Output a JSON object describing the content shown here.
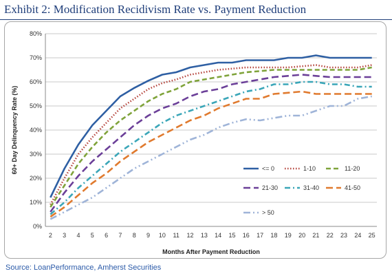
{
  "header": {
    "title": "Exhibit 2:  Modification Recidivism Rate vs. Payment Reduction"
  },
  "footer": {
    "source": "Source:  LoanPerformance, Amherst Securities"
  },
  "chart_data": {
    "type": "line",
    "title": "",
    "xlabel": "Months After Payment Reduction",
    "ylabel": "60+ Day Delinquency Rate (%)",
    "x": [
      2,
      3,
      4,
      5,
      6,
      7,
      8,
      9,
      10,
      11,
      12,
      13,
      14,
      15,
      16,
      17,
      18,
      19,
      20,
      21,
      22,
      23,
      24,
      25
    ],
    "ylim": [
      0,
      80
    ],
    "yticks": [
      0,
      10,
      20,
      30,
      40,
      50,
      60,
      70,
      80
    ],
    "y_tick_format": "percent",
    "grid": true,
    "legend_position": "bottom-right",
    "series": [
      {
        "name": "<= 0",
        "color": "#2e5fa3",
        "style": "solid",
        "values": [
          12,
          24,
          34,
          42,
          48,
          54,
          57.5,
          60.5,
          63,
          64,
          66,
          67,
          68,
          68,
          69,
          69,
          69,
          70,
          70,
          71,
          70,
          70,
          70,
          70
        ]
      },
      {
        "name": "1-10",
        "color": "#b5443c",
        "style": "dotted",
        "values": [
          9,
          20,
          30,
          37,
          43,
          49,
          53,
          57,
          59.5,
          61,
          63,
          64,
          65,
          65.5,
          66,
          66,
          66,
          66,
          66.5,
          67,
          66,
          66,
          66,
          67
        ]
      },
      {
        "name": "11-20",
        "color": "#7fa33a",
        "style": "dashed",
        "values": [
          8,
          17,
          26,
          33,
          39,
          44,
          48,
          52,
          55,
          57,
          60,
          61,
          62,
          63,
          64,
          64.5,
          65,
          65,
          65,
          65,
          65,
          65,
          65,
          66
        ]
      },
      {
        "name": "21-30",
        "color": "#6b3f98",
        "style": "longdash",
        "values": [
          6,
          14,
          21,
          27,
          32,
          37,
          42,
          46,
          49,
          51,
          54,
          56,
          57,
          59,
          60,
          61,
          62,
          62.5,
          63,
          62.5,
          62,
          62,
          62,
          62
        ]
      },
      {
        "name": "31-40",
        "color": "#3aa6b8",
        "style": "dashdot",
        "values": [
          5,
          10,
          16,
          21,
          26,
          31,
          35,
          39,
          43,
          46,
          48,
          50,
          52,
          54,
          56,
          57,
          59,
          59,
          60,
          60,
          59,
          59,
          58,
          58
        ]
      },
      {
        "name": "41-50",
        "color": "#e07a2e",
        "style": "longdash",
        "values": [
          4,
          8,
          13,
          18,
          22,
          27,
          31,
          35,
          38,
          41,
          44,
          46,
          49,
          51,
          53,
          53,
          55,
          55.5,
          56,
          55,
          55,
          55,
          55,
          55
        ]
      },
      {
        "name": "> 50",
        "color": "#9fb4d8",
        "style": "dashdotdot",
        "values": [
          3,
          6,
          9,
          12,
          16,
          20,
          24,
          27,
          30,
          33,
          36,
          38,
          41,
          43,
          44.5,
          44,
          45,
          46,
          46,
          48,
          50,
          50,
          53,
          54
        ]
      }
    ]
  }
}
